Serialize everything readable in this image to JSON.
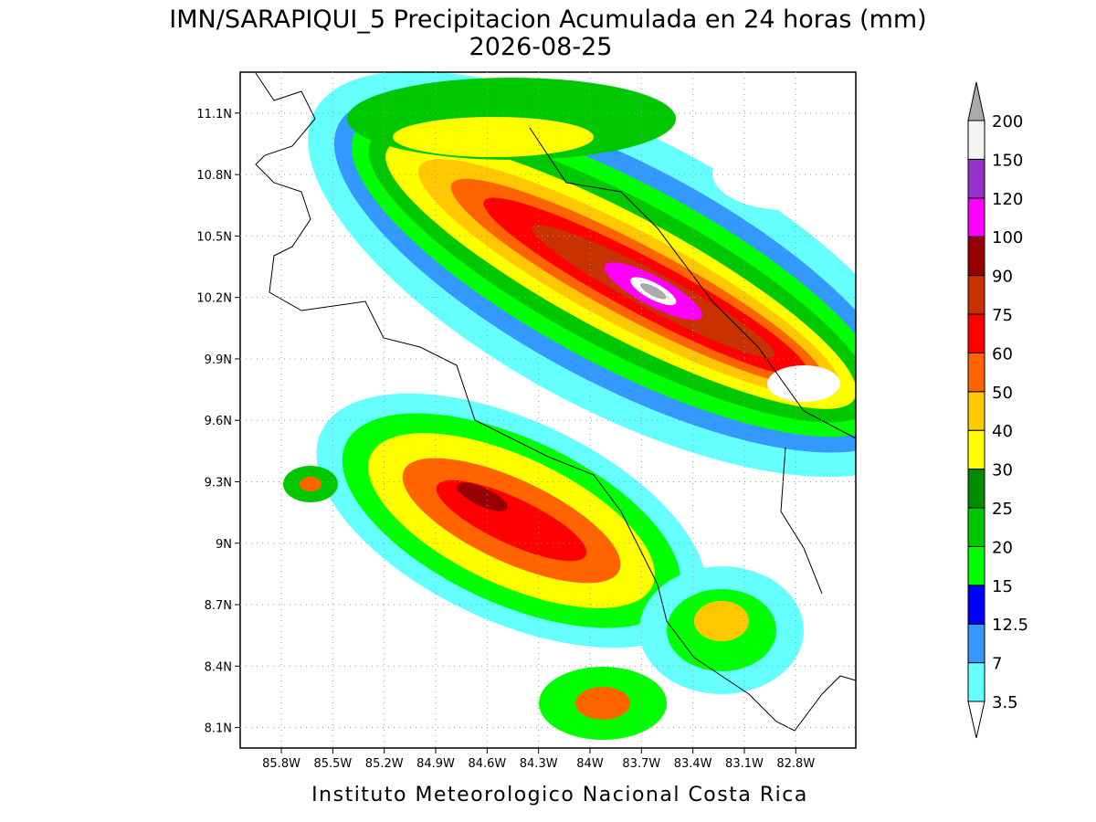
{
  "title": "IMN/SARAPIQUI_5 Precipitacion Acumulada en 24 horas (mm)",
  "date": "2026-08-25",
  "footer": "Instituto Meteorologico Nacional Costa Rica",
  "map": {
    "lonlim": [
      -86.04,
      -82.45
    ],
    "latlim": [
      8.0,
      11.3
    ],
    "lon_ticks": [
      {
        "value": -85.8,
        "label": "85.8W"
      },
      {
        "value": -85.5,
        "label": "85.5W"
      },
      {
        "value": -85.2,
        "label": "85.2W"
      },
      {
        "value": -84.9,
        "label": "84.9W"
      },
      {
        "value": -84.6,
        "label": "84.6W"
      },
      {
        "value": -84.3,
        "label": "84.3W"
      },
      {
        "value": -84.0,
        "label": "84W"
      },
      {
        "value": -83.7,
        "label": "83.7W"
      },
      {
        "value": -83.4,
        "label": "83.4W"
      },
      {
        "value": -83.1,
        "label": "83.1W"
      },
      {
        "value": -82.8,
        "label": "82.8W"
      }
    ],
    "lat_ticks": [
      {
        "value": 8.1,
        "label": "8.1N"
      },
      {
        "value": 8.4,
        "label": "8.4N"
      },
      {
        "value": 8.7,
        "label": "8.7N"
      },
      {
        "value": 9.0,
        "label": "9N"
      },
      {
        "value": 9.3,
        "label": "9.3N"
      },
      {
        "value": 9.6,
        "label": "9.6N"
      },
      {
        "value": 9.9,
        "label": "9.9N"
      },
      {
        "value": 10.2,
        "label": "10.2N"
      },
      {
        "value": 10.5,
        "label": "10.5N"
      },
      {
        "value": 10.8,
        "label": "10.8N"
      },
      {
        "value": 11.1,
        "label": "11.1N"
      }
    ],
    "grid": true
  },
  "colorbar": {
    "levels": [
      3.5,
      7,
      12.5,
      15,
      20,
      25,
      30,
      40,
      50,
      60,
      75,
      90,
      100,
      120,
      150,
      200
    ],
    "colors": [
      "#66ffff",
      "#3399ff",
      "#0000ff",
      "#00ff00",
      "#00c800",
      "#008c00",
      "#ffff00",
      "#ffc800",
      "#ff6400",
      "#ff0000",
      "#c83200",
      "#960000",
      "#ff00ff",
      "#9632c8",
      "#f5f5f5"
    ],
    "under_color": "#ffffff",
    "over_color": "#aaaaaa"
  }
}
